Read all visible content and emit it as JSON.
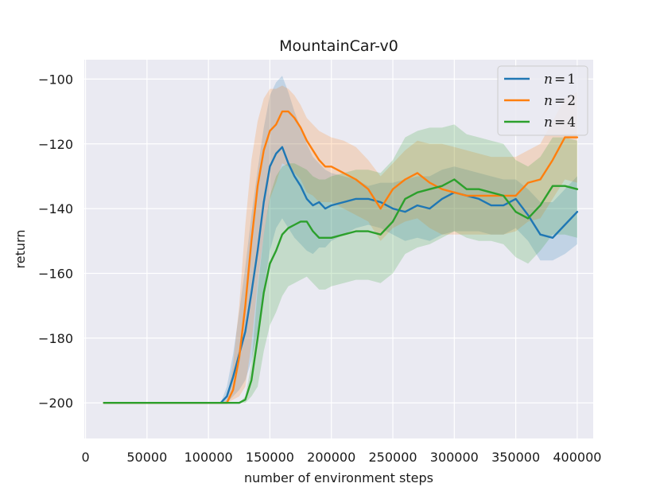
{
  "chart_data": {
    "type": "line",
    "title": "MountainCar-v0",
    "xlabel": "number of environment steps",
    "ylabel": "return",
    "xlim": [
      -1000,
      413000
    ],
    "ylim": [
      -211,
      -94
    ],
    "xticks": [
      0,
      50000,
      100000,
      150000,
      200000,
      250000,
      300000,
      350000,
      400000
    ],
    "yticks": [
      -200,
      -180,
      -160,
      -140,
      -120,
      -100
    ],
    "xtick_labels": [
      "0",
      "50000",
      "100000",
      "150000",
      "200000",
      "250000",
      "300000",
      "350000",
      "400000"
    ],
    "ytick_labels": [
      "−200",
      "−180",
      "−160",
      "−140",
      "−120",
      "−100"
    ],
    "grid": true,
    "legend_position": "top-right",
    "x": [
      15000,
      110000,
      115000,
      120000,
      125000,
      130000,
      135000,
      140000,
      145000,
      150000,
      155000,
      160000,
      165000,
      170000,
      175000,
      180000,
      185000,
      190000,
      195000,
      200000,
      210000,
      220000,
      230000,
      240000,
      250000,
      260000,
      270000,
      280000,
      290000,
      300000,
      310000,
      320000,
      330000,
      340000,
      350000,
      360000,
      370000,
      380000,
      390000,
      400000
    ],
    "series": [
      {
        "name": "n = 1",
        "legend_math": {
          "var": "n",
          "op": "=",
          "val": "1"
        },
        "color": "#1f77b4",
        "values": [
          -200,
          -200,
          -198,
          -192,
          -185,
          -178,
          -166,
          -153,
          -138,
          -127,
          -123,
          -121,
          -126,
          -130,
          -133,
          -137,
          -139,
          -138,
          -140,
          -139,
          -138,
          -137,
          -137,
          -138,
          -140,
          -141,
          -139,
          -140,
          -137,
          -135,
          -136,
          -137,
          -139,
          -139,
          -137,
          -142,
          -148,
          -149,
          -145,
          -141
        ],
        "upper": [
          -200,
          -200,
          -195,
          -185,
          -172,
          -158,
          -142,
          -128,
          -115,
          -105,
          -101,
          -99,
          -104,
          -110,
          -115,
          -120,
          -124,
          -126,
          -128,
          -129,
          -130,
          -131,
          -133,
          -132,
          -132,
          -131,
          -130,
          -130,
          -128,
          -127,
          -128,
          -129,
          -130,
          -131,
          -131,
          -134,
          -138,
          -138,
          -134,
          -130
        ],
        "lower": [
          -200,
          -200,
          -200,
          -198,
          -196,
          -193,
          -187,
          -178,
          -165,
          -153,
          -146,
          -143,
          -146,
          -149,
          -151,
          -153,
          -154,
          -152,
          -152,
          -150,
          -148,
          -146,
          -145,
          -146,
          -148,
          -150,
          -149,
          -150,
          -148,
          -147,
          -147,
          -147,
          -148,
          -148,
          -146,
          -150,
          -156,
          -156,
          -154,
          -151
        ]
      },
      {
        "name": "n = 2",
        "legend_math": {
          "var": "n",
          "op": "=",
          "val": "2"
        },
        "color": "#ff7f0e",
        "values": [
          -200,
          -200,
          -200,
          -196,
          -186,
          -170,
          -150,
          -133,
          -122,
          -116,
          -114,
          -110,
          -110,
          -112,
          -115,
          -119,
          -122,
          -125,
          -127,
          -127,
          -129,
          -131,
          -134,
          -140,
          -134,
          -131,
          -129,
          -132,
          -134,
          -135,
          -136,
          -136,
          -136,
          -136,
          -136,
          -132,
          -131,
          -125,
          -118,
          -118
        ],
        "upper": [
          -200,
          -200,
          -199,
          -188,
          -170,
          -145,
          -125,
          -113,
          -106,
          -103,
          -103,
          -102,
          -103,
          -105,
          -108,
          -112,
          -114,
          -116,
          -117,
          -118,
          -119,
          -121,
          -125,
          -130,
          -126,
          -122,
          -119,
          -120,
          -120,
          -121,
          -122,
          -123,
          -124,
          -124,
          -124,
          -122,
          -120,
          -113,
          -106,
          -104
        ],
        "lower": [
          -200,
          -200,
          -200,
          -199,
          -198,
          -195,
          -182,
          -163,
          -148,
          -137,
          -132,
          -126,
          -127,
          -129,
          -131,
          -135,
          -136,
          -138,
          -138,
          -138,
          -140,
          -142,
          -144,
          -150,
          -146,
          -144,
          -143,
          -146,
          -148,
          -148,
          -148,
          -148,
          -148,
          -148,
          -147,
          -144,
          -143,
          -137,
          -131,
          -132
        ]
      },
      {
        "name": "n = 4",
        "legend_math": {
          "var": "n",
          "op": "=",
          "val": "4"
        },
        "color": "#2ca02c",
        "values": [
          -200,
          -200,
          -200,
          -200,
          -200,
          -199,
          -193,
          -180,
          -166,
          -157,
          -153,
          -148,
          -146,
          -145,
          -144,
          -144,
          -147,
          -149,
          -149,
          -149,
          -148,
          -147,
          -147,
          -148,
          -144,
          -137,
          -135,
          -134,
          -133,
          -131,
          -134,
          -134,
          -135,
          -136,
          -141,
          -143,
          -139,
          -133,
          -133,
          -134
        ],
        "upper": [
          -200,
          -200,
          -200,
          -200,
          -200,
          -198,
          -188,
          -165,
          -148,
          -136,
          -130,
          -127,
          -126,
          -126,
          -127,
          -128,
          -130,
          -131,
          -131,
          -130,
          -129,
          -128,
          -128,
          -129,
          -125,
          -118,
          -116,
          -115,
          -115,
          -114,
          -117,
          -118,
          -119,
          -120,
          -125,
          -127,
          -124,
          -118,
          -118,
          -119
        ],
        "lower": [
          -200,
          -200,
          -200,
          -200,
          -200,
          -200,
          -198,
          -195,
          -184,
          -176,
          -172,
          -167,
          -164,
          -163,
          -162,
          -161,
          -163,
          -165,
          -165,
          -164,
          -163,
          -162,
          -162,
          -163,
          -160,
          -154,
          -152,
          -151,
          -149,
          -147,
          -149,
          -150,
          -150,
          -151,
          -155,
          -157,
          -153,
          -148,
          -148,
          -149
        ]
      }
    ]
  }
}
